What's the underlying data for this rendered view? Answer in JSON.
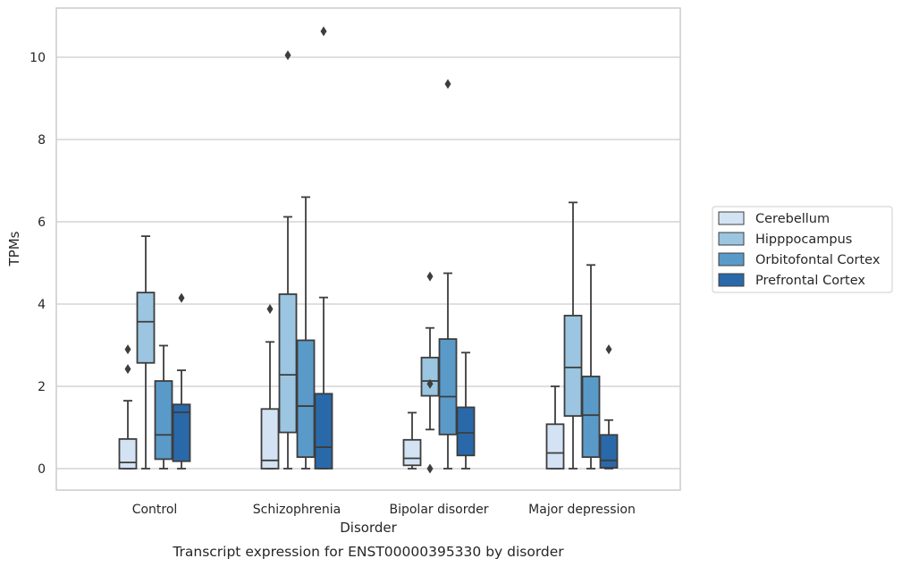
{
  "chart_data": {
    "type": "box",
    "xlabel": "Disorder",
    "ylabel": "TPMs",
    "caption": "Transcript expression for ENST00000395330 by disorder",
    "ylim": [
      -0.5,
      11.2
    ],
    "yticks": [
      0,
      2,
      4,
      6,
      8,
      10
    ],
    "grid": "horizontal",
    "legend_position": "center-right",
    "categories": [
      "Control",
      "Schizophrenia",
      "Bipolar disorder",
      "Major depression"
    ],
    "series": [
      {
        "name": "Cerebellum",
        "color": "#d4e3f3",
        "boxes": [
          {
            "whislo": 0,
            "q1": 0,
            "med": 0.15,
            "q3": 0.72,
            "whishi": 1.65,
            "fliers": [
              2.42,
              2.9
            ]
          },
          {
            "whislo": 0,
            "q1": 0,
            "med": 0.2,
            "q3": 1.45,
            "whishi": 3.08,
            "fliers": [
              3.88
            ]
          },
          {
            "whislo": 0,
            "q1": 0.08,
            "med": 0.25,
            "q3": 0.7,
            "whishi": 1.36,
            "fliers": []
          },
          {
            "whislo": 0,
            "q1": 0,
            "med": 0.38,
            "q3": 1.08,
            "whishi": 2.0,
            "fliers": []
          }
        ]
      },
      {
        "name": "Hipppocampus",
        "color": "#9bc5e0",
        "boxes": [
          {
            "whislo": 0,
            "q1": 2.57,
            "med": 3.57,
            "q3": 4.28,
            "whishi": 5.65,
            "fliers": []
          },
          {
            "whislo": 0,
            "q1": 0.88,
            "med": 2.28,
            "q3": 4.24,
            "whishi": 6.12,
            "fliers": [
              10.05
            ]
          },
          {
            "whislo": 0.95,
            "q1": 1.77,
            "med": 2.13,
            "q3": 2.7,
            "whishi": 3.42,
            "fliers": [
              2.06,
              4.67,
              0
            ]
          },
          {
            "whislo": 0,
            "q1": 1.28,
            "med": 2.46,
            "q3": 3.72,
            "whishi": 6.47,
            "fliers": []
          }
        ]
      },
      {
        "name": "Orbitofontal Cortex",
        "color": "#5a9ac8",
        "boxes": [
          {
            "whislo": 0,
            "q1": 0.23,
            "med": 0.82,
            "q3": 2.13,
            "whishi": 2.99,
            "fliers": []
          },
          {
            "whislo": 0,
            "q1": 0.28,
            "med": 1.52,
            "q3": 3.12,
            "whishi": 6.6,
            "fliers": []
          },
          {
            "whislo": 0,
            "q1": 0.83,
            "med": 1.75,
            "q3": 3.15,
            "whishi": 4.75,
            "fliers": [
              9.35
            ]
          },
          {
            "whislo": 0,
            "q1": 0.28,
            "med": 1.3,
            "q3": 2.24,
            "whishi": 4.95,
            "fliers": []
          }
        ]
      },
      {
        "name": "Prefrontal Cortex",
        "color": "#2a69a9",
        "boxes": [
          {
            "whislo": 0,
            "q1": 0.18,
            "med": 1.37,
            "q3": 1.56,
            "whishi": 2.39,
            "fliers": [
              4.15
            ]
          },
          {
            "whislo": 0,
            "q1": 0,
            "med": 0.52,
            "q3": 1.82,
            "whishi": 4.16,
            "fliers": [
              10.63
            ]
          },
          {
            "whislo": 0,
            "q1": 0.32,
            "med": 0.87,
            "q3": 1.49,
            "whishi": 2.82,
            "fliers": []
          },
          {
            "whislo": 0,
            "q1": 0.02,
            "med": 0.2,
            "q3": 0.82,
            "whishi": 1.18,
            "fliers": [
              2.9
            ]
          }
        ]
      }
    ]
  }
}
